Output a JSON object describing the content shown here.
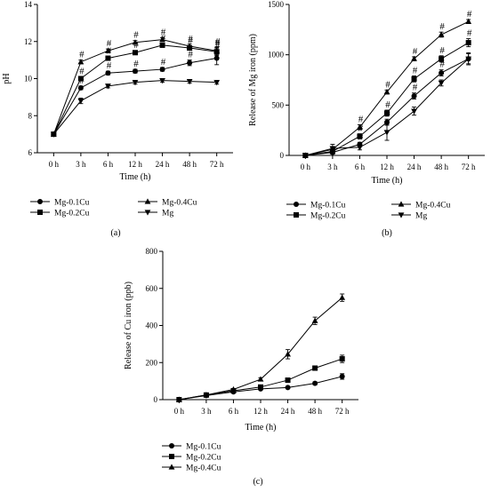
{
  "figure": {
    "panels": [
      {
        "id": "a",
        "panel_label": "(a)",
        "chart_data": {
          "type": "line",
          "categories": [
            "0 h",
            "3 h",
            "6 h",
            "12 h",
            "24 h",
            "48 h",
            "72 h"
          ],
          "xlabel": "Time (h)",
          "ylabel": "pH",
          "ylim": [
            6,
            14
          ],
          "yticks": [
            6,
            8,
            10,
            12,
            14
          ],
          "series": [
            {
              "name": "Mg-0.1Cu",
              "marker": "circle",
              "values": [
                7.0,
                9.5,
                10.3,
                10.4,
                10.5,
                10.85,
                11.1
              ],
              "errors": [
                0,
                0.1,
                0.1,
                0.1,
                0.1,
                0.15,
                0.35
              ],
              "annotations": [
                "",
                "#",
                "#",
                "#",
                "#",
                "#",
                "#"
              ]
            },
            {
              "name": "Mg-0.2Cu",
              "marker": "square",
              "values": [
                7.0,
                10.0,
                11.1,
                11.4,
                11.8,
                11.65,
                11.45
              ],
              "errors": [
                0,
                0.1,
                0.1,
                0.1,
                0.1,
                0.1,
                0.2
              ],
              "annotations": [
                "",
                "#",
                "#",
                "#",
                "#",
                "#",
                "#"
              ]
            },
            {
              "name": "Mg-0.4Cu",
              "marker": "triangle-up",
              "values": [
                7.0,
                10.9,
                11.5,
                11.95,
                12.1,
                11.75,
                11.5
              ],
              "errors": [
                0,
                0.1,
                0.1,
                0.1,
                0.1,
                0.1,
                0.2
              ],
              "annotations": [
                "",
                "#",
                "#",
                "#",
                "#",
                "#",
                "#"
              ]
            },
            {
              "name": "Mg",
              "marker": "triangle-down",
              "values": [
                7.0,
                8.8,
                9.6,
                9.8,
                9.9,
                9.85,
                9.8
              ],
              "errors": [
                0,
                0.15,
                0.1,
                0.1,
                0.1,
                0.1,
                0.1
              ],
              "annotations": [
                "",
                "",
                "",
                "",
                "",
                "",
                ""
              ]
            }
          ],
          "legend": {
            "placement": "below",
            "columns": 2,
            "order": [
              "Mg-0.1Cu",
              "Mg-0.4Cu",
              "Mg-0.2Cu",
              "Mg"
            ]
          }
        }
      },
      {
        "id": "b",
        "panel_label": "(b)",
        "chart_data": {
          "type": "line",
          "categories": [
            "0 h",
            "3 h",
            "6 h",
            "12 h",
            "24 h",
            "48 h",
            "72 h"
          ],
          "xlabel": "Time (h)",
          "ylabel": "Release of Mg iron (ppm)",
          "ylim": [
            0,
            1500
          ],
          "yticks": [
            0,
            500,
            1000,
            1500
          ],
          "series": [
            {
              "name": "Mg-0.1Cu",
              "marker": "circle",
              "values": [
                0,
                30,
                110,
                330,
                590,
                820,
                960
              ],
              "errors": [
                0,
                15,
                20,
                30,
                30,
                30,
                60
              ],
              "annotations": [
                "",
                "",
                "#",
                "#",
                "#",
                "#",
                ""
              ]
            },
            {
              "name": "Mg-0.2Cu",
              "marker": "square",
              "values": [
                0,
                40,
                190,
                420,
                760,
                960,
                1120
              ],
              "errors": [
                0,
                15,
                25,
                30,
                30,
                30,
                40
              ],
              "annotations": [
                "",
                "",
                "#",
                "#",
                "#",
                "#",
                "#"
              ]
            },
            {
              "name": "Mg-0.4Cu",
              "marker": "triangle-up",
              "values": [
                0,
                60,
                280,
                630,
                960,
                1200,
                1330
              ],
              "errors": [
                0,
                15,
                25,
                20,
                20,
                25,
                20
              ],
              "annotations": [
                "",
                "",
                "#",
                "#",
                "#",
                "#",
                "#"
              ]
            },
            {
              "name": "Mg",
              "marker": "triangle-down",
              "values": [
                0,
                70,
                80,
                230,
                440,
                720,
                960
              ],
              "errors": [
                0,
                40,
                25,
                80,
                40,
                30,
                50
              ],
              "annotations": [
                "",
                "",
                "",
                "",
                "",
                "",
                ""
              ]
            }
          ],
          "legend": {
            "placement": "below",
            "columns": 2,
            "order": [
              "Mg-0.1Cu",
              "Mg-0.4Cu",
              "Mg-0.2Cu",
              "Mg"
            ]
          }
        }
      },
      {
        "id": "c",
        "panel_label": "(c)",
        "chart_data": {
          "type": "line",
          "categories": [
            "0 h",
            "3 h",
            "6 h",
            "12 h",
            "24 h",
            "48 h",
            "72 h"
          ],
          "xlabel": "Time (h)",
          "ylabel": "Release of Cu iron (ppb)",
          "ylim": [
            0,
            800
          ],
          "yticks": [
            0,
            200,
            400,
            600,
            800
          ],
          "series": [
            {
              "name": "Mg-0.1Cu",
              "marker": "circle",
              "values": [
                0,
                22,
                42,
                58,
                65,
                88,
                125
              ],
              "errors": [
                0,
                3,
                5,
                5,
                5,
                8,
                15
              ],
              "annotations": [
                "",
                "",
                "",
                "",
                "",
                "",
                ""
              ]
            },
            {
              "name": "Mg-0.2Cu",
              "marker": "square",
              "values": [
                0,
                25,
                48,
                68,
                105,
                170,
                220
              ],
              "errors": [
                0,
                3,
                5,
                5,
                8,
                10,
                20
              ],
              "annotations": [
                "",
                "",
                "",
                "",
                "",
                "",
                ""
              ]
            },
            {
              "name": "Mg-0.4Cu",
              "marker": "triangle-up",
              "values": [
                0,
                25,
                55,
                110,
                245,
                425,
                550
              ],
              "errors": [
                0,
                3,
                5,
                8,
                25,
                20,
                20
              ],
              "annotations": [
                "",
                "",
                "",
                "",
                "",
                "",
                ""
              ]
            }
          ],
          "legend": {
            "placement": "below",
            "columns": 1,
            "order": [
              "Mg-0.1Cu",
              "Mg-0.2Cu",
              "Mg-0.4Cu"
            ]
          }
        }
      }
    ]
  }
}
